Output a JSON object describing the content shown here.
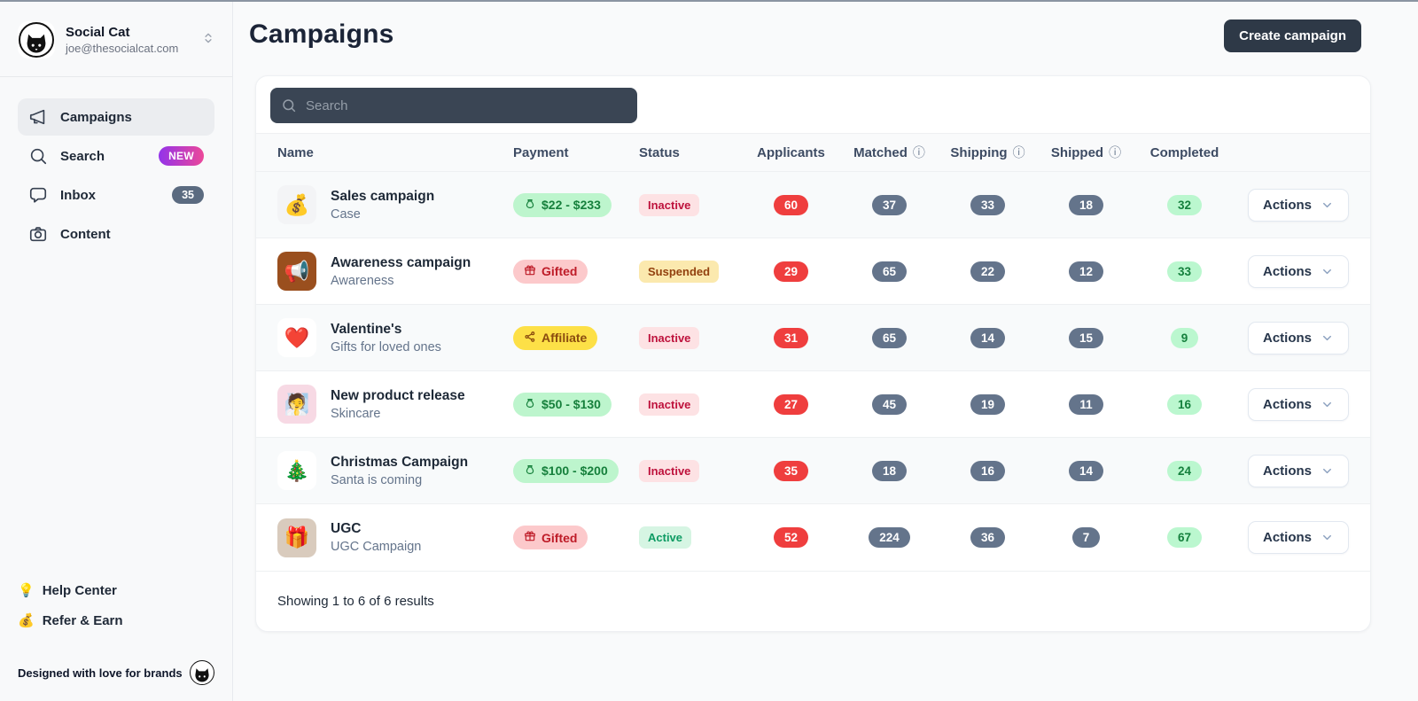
{
  "sidebar": {
    "workspace": {
      "name": "Social Cat",
      "email": "joe@thesocialcat.com"
    },
    "nav": [
      {
        "label": "Campaigns",
        "icon": "megaphone",
        "active": true
      },
      {
        "label": "Search",
        "icon": "magnifier",
        "badge_new": "NEW"
      },
      {
        "label": "Inbox",
        "icon": "chat",
        "count": "35"
      },
      {
        "label": "Content",
        "icon": "camera"
      }
    ],
    "footer_links": [
      {
        "icon": "💡",
        "label": "Help Center"
      },
      {
        "icon": "💰",
        "label": "Refer & Earn"
      }
    ],
    "tagline": "Designed with love for brands"
  },
  "header": {
    "title": "Campaigns",
    "create_button": "Create campaign"
  },
  "search": {
    "placeholder": "Search"
  },
  "table": {
    "columns": [
      {
        "label": "Name"
      },
      {
        "label": "Payment"
      },
      {
        "label": "Status"
      },
      {
        "label": "Applicants"
      },
      {
        "label": "Matched",
        "info": true
      },
      {
        "label": "Shipping",
        "info": true
      },
      {
        "label": "Shipped",
        "info": true
      },
      {
        "label": "Completed"
      }
    ],
    "info_icon": "ⓘ",
    "actions_label": "Actions",
    "rows": [
      {
        "icon": "💰",
        "icon_bg": "#f3f4f6",
        "name": "Sales campaign",
        "subtitle": "Case",
        "payment": {
          "type": "paid",
          "label": "$22 - $233"
        },
        "status": {
          "type": "inactive",
          "label": "Inactive"
        },
        "applicants": "60",
        "matched": "37",
        "shipping": "33",
        "shipped": "18",
        "completed": "32"
      },
      {
        "icon": "📢",
        "icon_bg": "#9a4f1e",
        "name": "Awareness campaign",
        "subtitle": "Awareness",
        "payment": {
          "type": "gifted",
          "label": "Gifted"
        },
        "status": {
          "type": "suspended",
          "label": "Suspended"
        },
        "applicants": "29",
        "matched": "65",
        "shipping": "22",
        "shipped": "12",
        "completed": "33"
      },
      {
        "icon": "❤️",
        "icon_bg": "#ffffff",
        "name": "Valentine's",
        "subtitle": "Gifts for loved ones",
        "payment": {
          "type": "affiliate",
          "label": "Affiliate"
        },
        "status": {
          "type": "inactive",
          "label": "Inactive"
        },
        "applicants": "31",
        "matched": "65",
        "shipping": "14",
        "shipped": "15",
        "completed": "9"
      },
      {
        "icon": "🧖",
        "icon_bg": "#f7d9e4",
        "name": "New product release",
        "subtitle": "Skincare",
        "payment": {
          "type": "paid",
          "label": "$50 - $130"
        },
        "status": {
          "type": "inactive",
          "label": "Inactive"
        },
        "applicants": "27",
        "matched": "45",
        "shipping": "19",
        "shipped": "11",
        "completed": "16"
      },
      {
        "icon": "🎄",
        "icon_bg": "#ffffff",
        "name": "Christmas Campaign",
        "subtitle": "Santa is coming",
        "payment": {
          "type": "paid",
          "label": "$100 - $200"
        },
        "status": {
          "type": "inactive",
          "label": "Inactive"
        },
        "applicants": "35",
        "matched": "18",
        "shipping": "16",
        "shipped": "14",
        "completed": "24"
      },
      {
        "icon": "🎁",
        "icon_bg": "#d9cbbd",
        "name": "UGC",
        "subtitle": "UGC Campaign",
        "payment": {
          "type": "gifted",
          "label": "Gifted"
        },
        "status": {
          "type": "active",
          "label": "Active"
        },
        "applicants": "52",
        "matched": "224",
        "shipping": "36",
        "shipped": "7",
        "completed": "67"
      }
    ],
    "footer": "Showing 1 to 6 of 6 results"
  },
  "colors": {
    "brand_dark": "#2e3947",
    "sidebar_bg": "#f8f9fa",
    "applicants_pill": "#ef3e3e",
    "count_pill": "#64748b",
    "completed_bg": "#bbf7cf",
    "completed_text": "#15803d",
    "paid_bg": "#bdf5cd",
    "paid_text": "#16803c",
    "gifted_bg": "#fcc9cb",
    "gifted_text": "#be1c28",
    "affiliate_bg": "#fde047",
    "affiliate_text": "#8a4b0f",
    "inactive_bg": "#fde2e4",
    "inactive_text": "#be123c",
    "suspended_bg": "#fbe9ae",
    "suspended_text": "#92400e",
    "active_bg": "#d6f5e3",
    "active_text": "#0d9b63",
    "new_badge_gradient": [
      "#9333ea",
      "#ec4899"
    ]
  }
}
